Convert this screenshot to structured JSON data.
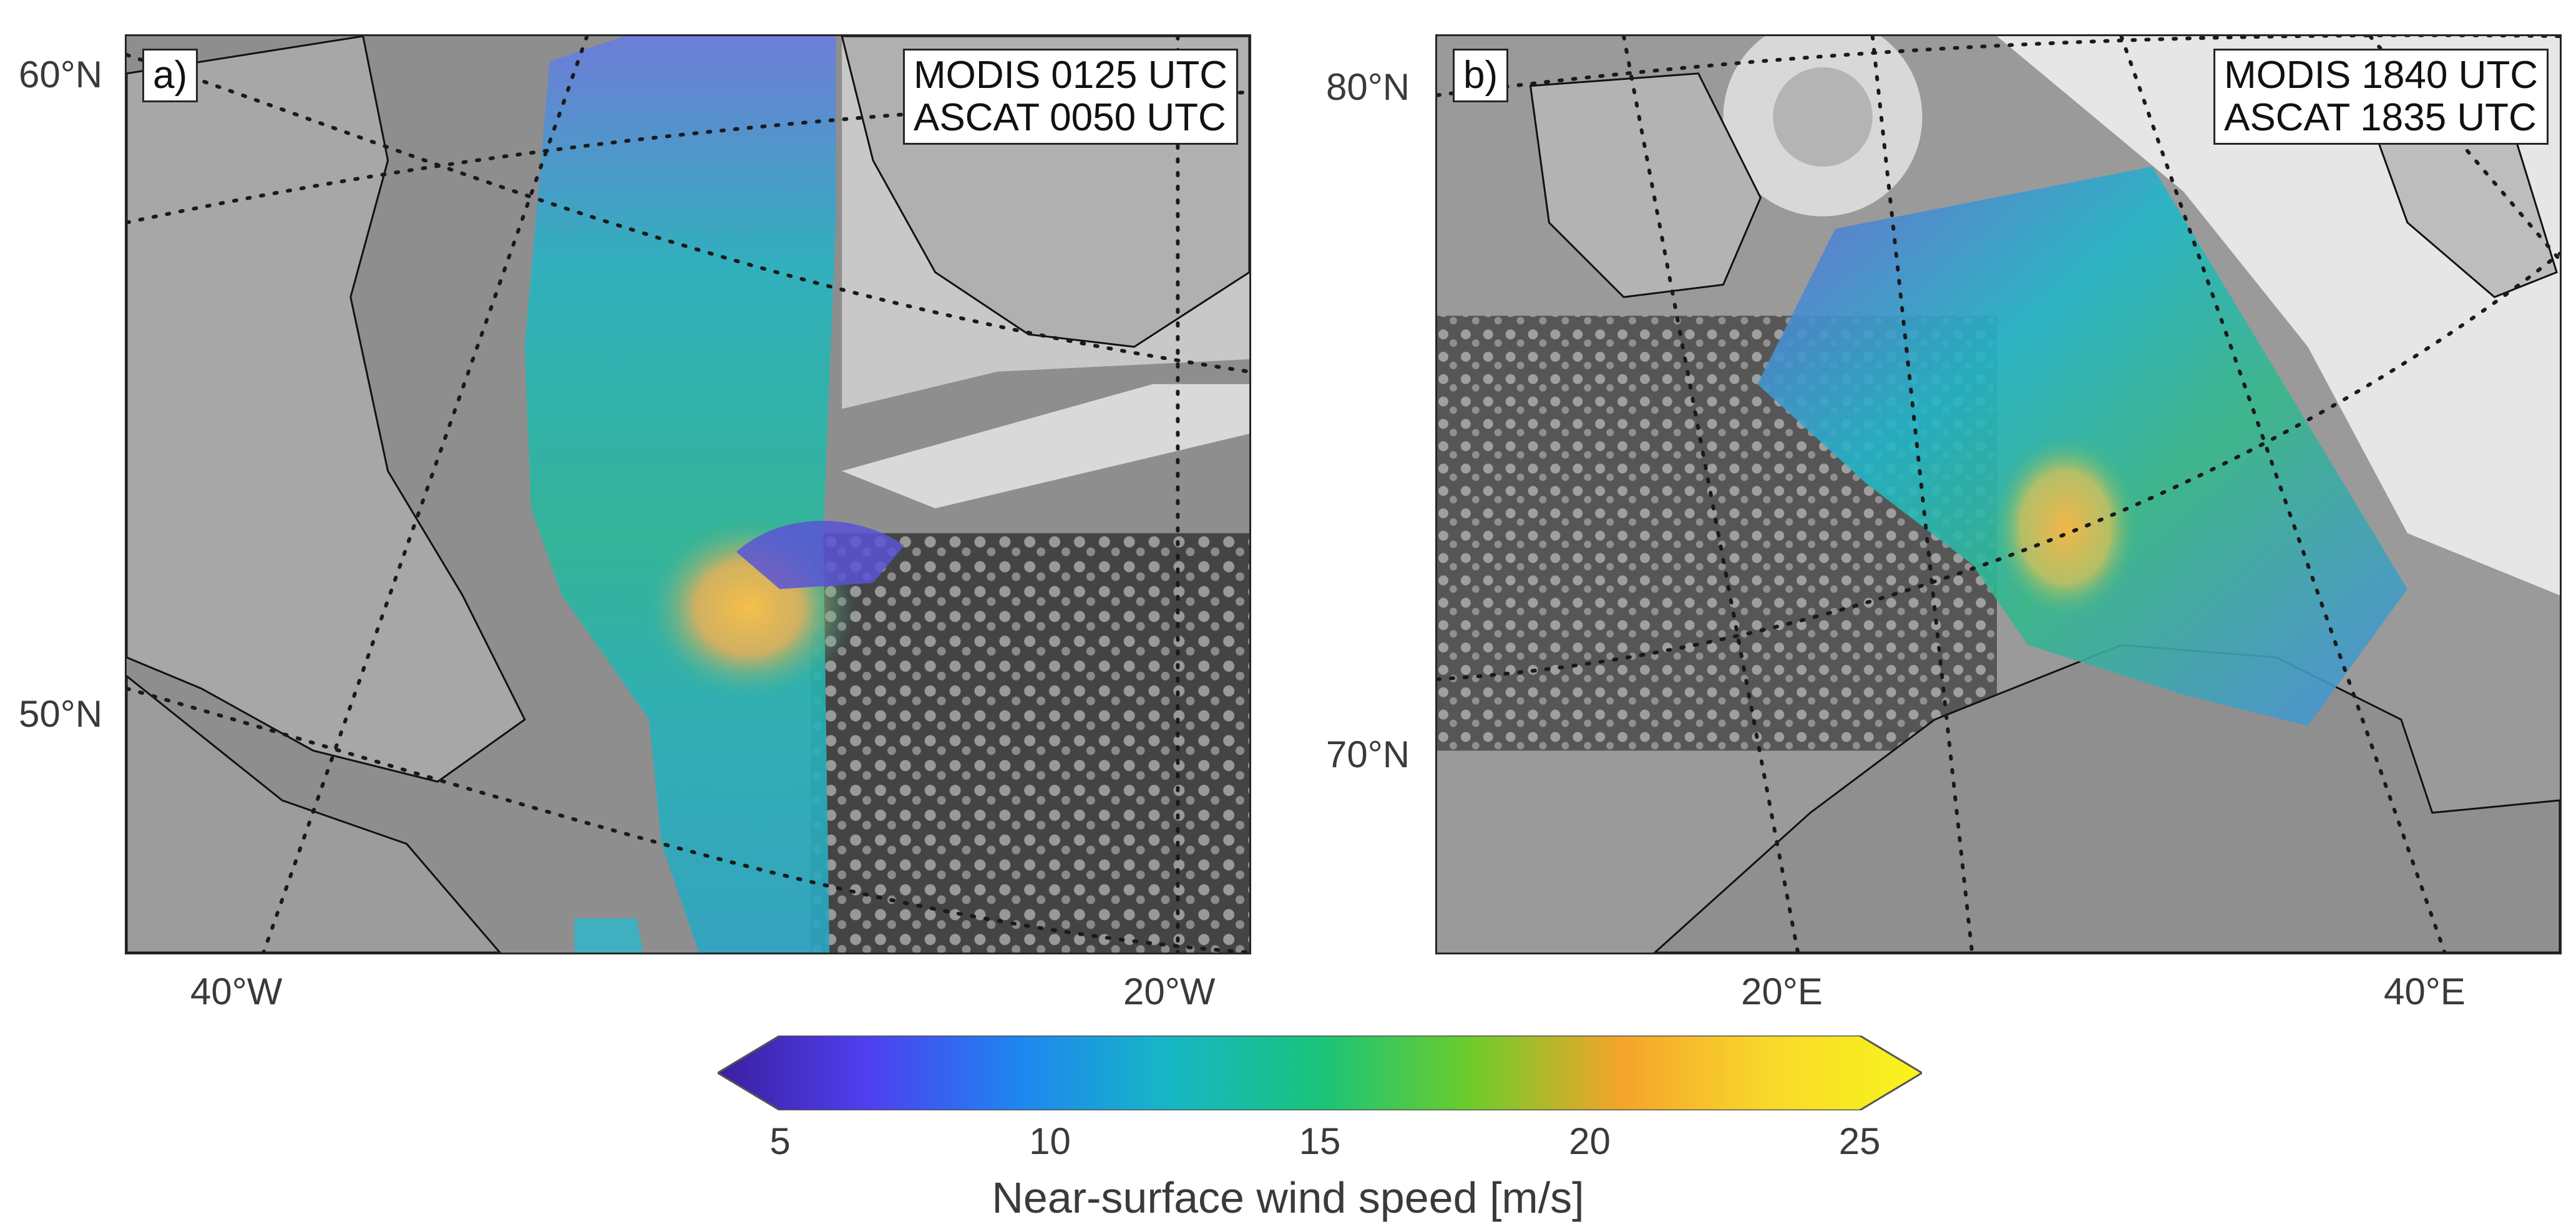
{
  "panels": [
    {
      "letter": "a)",
      "times": [
        "MODIS 0125 UTC",
        "ASCAT 0050 UTC"
      ],
      "lat_labels": [
        "60°N",
        "50°N"
      ],
      "lon_labels": [
        "40°W",
        "20°W"
      ]
    },
    {
      "letter": "b)",
      "times": [
        "MODIS 1840 UTC",
        "ASCAT 1835 UTC"
      ],
      "lat_labels": [
        "80°N",
        "70°N"
      ],
      "lon_labels": [
        "20°E",
        "40°E"
      ]
    }
  ],
  "colorbar": {
    "title": "Near-surface wind speed [m/s]",
    "ticks": [
      "5",
      "10",
      "15",
      "20",
      "25"
    ],
    "range": [
      5,
      25
    ],
    "colors": [
      "#3b1f9e",
      "#4f3ff0",
      "#1e86f0",
      "#17b6c6",
      "#19c47a",
      "#6dcc2a",
      "#f4a42a",
      "#f9d92a",
      "#f8f51c"
    ]
  }
}
